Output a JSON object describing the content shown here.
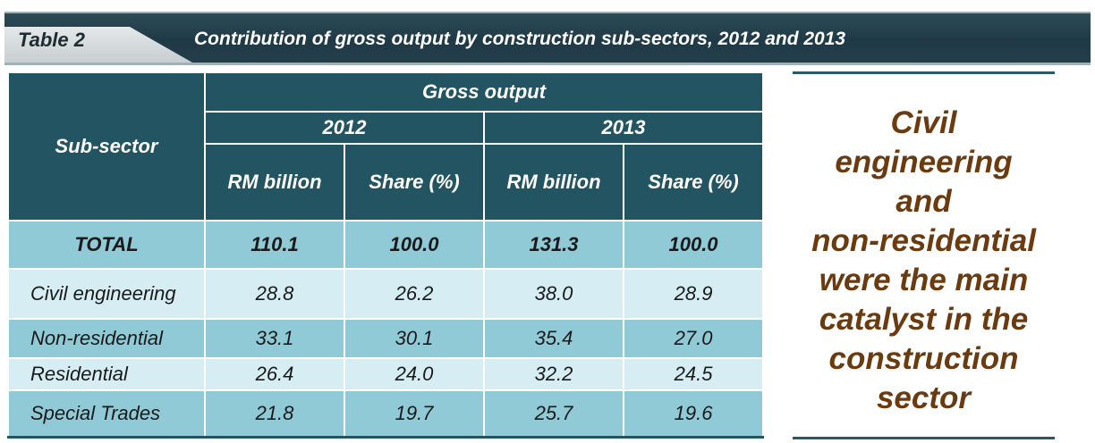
{
  "header": {
    "table_label": "Table  2",
    "title": "Contribution of gross output by construction sub-sectors, 2012 and 2013"
  },
  "table": {
    "subsector_header": "Sub-sector",
    "group_header": "Gross output",
    "years": [
      "2012",
      "2013"
    ],
    "columns": [
      "RM billion",
      "Share (%)",
      "RM billion",
      "Share (%)"
    ],
    "rows": [
      {
        "label": "TOTAL",
        "values": [
          "110.1",
          "100.0",
          "131.3",
          "100.0"
        ]
      },
      {
        "label": "Civil engineering",
        "values": [
          "28.8",
          "26.2",
          "38.0",
          "28.9"
        ]
      },
      {
        "label": "Non-residential",
        "values": [
          "33.1",
          "30.1",
          "35.4",
          "27.0"
        ]
      },
      {
        "label": "Residential",
        "values": [
          "26.4",
          "24.0",
          "32.2",
          "24.5"
        ]
      },
      {
        "label": "Special Trades",
        "values": [
          "21.8",
          "19.7",
          "25.7",
          "19.6"
        ]
      }
    ]
  },
  "callout": {
    "lines": [
      "Civil",
      "engineering",
      "and",
      "non-residential",
      "were the main",
      "catalyst in the",
      "construction",
      "sector"
    ]
  },
  "colors": {
    "header_bg": "#225461",
    "row_dark": "#8fcad6",
    "row_light": "#d6eef3",
    "callout_text": "#6b3a0f"
  }
}
